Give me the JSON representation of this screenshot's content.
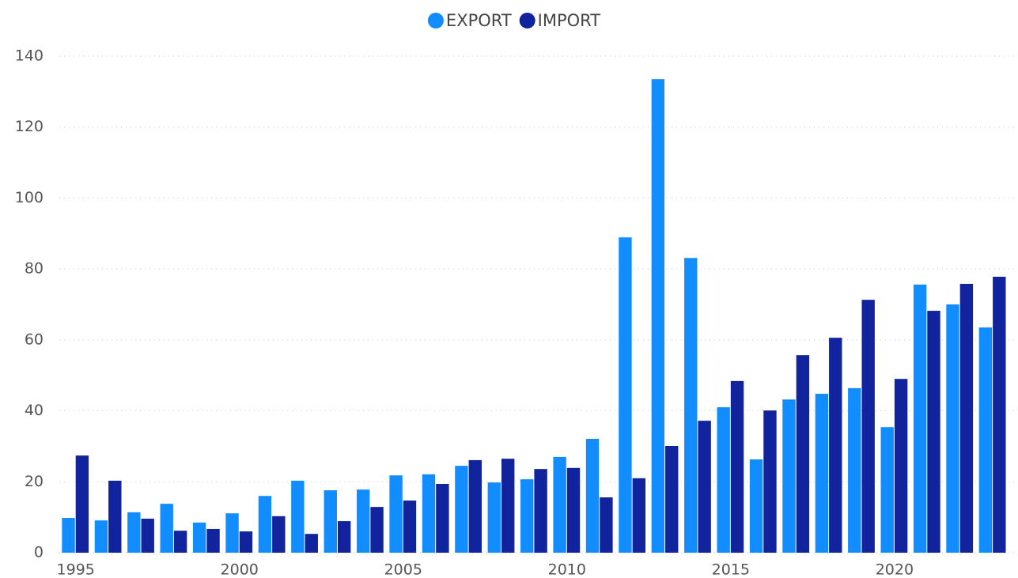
{
  "chart_data": {
    "type": "bar",
    "x": [
      1995,
      1996,
      1997,
      1998,
      1999,
      2000,
      2001,
      2002,
      2003,
      2004,
      2005,
      2006,
      2007,
      2008,
      2009,
      2010,
      2011,
      2012,
      2013,
      2014,
      2015,
      2016,
      2017,
      2018,
      2019,
      2020,
      2021,
      2022,
      2023
    ],
    "series": [
      {
        "name": "EXPORT",
        "color": "#118dff",
        "values": [
          9.8,
          9.1,
          11.4,
          13.8,
          8.5,
          11.1,
          16.0,
          20.3,
          17.6,
          17.8,
          21.8,
          22.1,
          24.5,
          19.8,
          20.7,
          27.0,
          32.1,
          88.9,
          133.5,
          83.1,
          41.0,
          26.3,
          43.2,
          44.8,
          46.4,
          35.4,
          75.6,
          70.0,
          63.5
        ]
      },
      {
        "name": "IMPORT",
        "color": "#12239e",
        "values": [
          27.4,
          20.3,
          9.6,
          6.2,
          6.7,
          6.0,
          10.3,
          5.3,
          8.9,
          12.9,
          14.7,
          19.4,
          26.1,
          26.5,
          23.6,
          23.9,
          15.6,
          21.0,
          30.1,
          37.2,
          48.4,
          40.1,
          55.7,
          60.6,
          71.3,
          49.0,
          68.2,
          75.8,
          77.8
        ]
      }
    ],
    "xlim": [
      1994.5,
      2023.77
    ],
    "xticks": [
      1995,
      2000,
      2005,
      2010,
      2015,
      2020
    ],
    "ylim": [
      0,
      140
    ],
    "yticks": [
      0,
      20,
      40,
      60,
      80,
      100,
      120,
      140
    ],
    "grid": true,
    "legend": "top"
  }
}
